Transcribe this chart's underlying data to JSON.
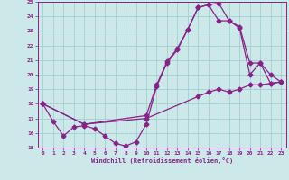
{
  "xlabel": "Windchill (Refroidissement éolien,°C)",
  "xlim": [
    -0.5,
    23.5
  ],
  "ylim": [
    15,
    25
  ],
  "xticks": [
    0,
    1,
    2,
    3,
    4,
    5,
    6,
    7,
    8,
    9,
    10,
    11,
    12,
    13,
    14,
    15,
    16,
    17,
    18,
    19,
    20,
    21,
    22,
    23
  ],
  "yticks": [
    15,
    16,
    17,
    18,
    19,
    20,
    21,
    22,
    23,
    24,
    25
  ],
  "bg_color": "#cce8e8",
  "line_color": "#882288",
  "grid_color": "#99cccc",
  "line1_x": [
    0,
    1,
    2,
    3,
    4,
    5,
    6,
    7,
    8,
    9,
    10,
    11,
    12,
    13,
    14,
    15,
    16,
    17,
    18,
    19,
    20,
    21,
    22,
    23
  ],
  "line1_y": [
    18.0,
    16.8,
    15.8,
    16.4,
    16.5,
    16.3,
    15.8,
    15.3,
    15.1,
    15.4,
    16.6,
    19.2,
    20.8,
    21.7,
    23.1,
    24.6,
    24.8,
    24.9,
    23.7,
    23.2,
    20.0,
    20.8,
    19.4,
    19.5
  ],
  "line2_x": [
    0,
    4,
    10,
    15,
    16,
    17,
    18,
    19,
    20,
    21,
    22,
    23
  ],
  "line2_y": [
    18.0,
    16.6,
    17.0,
    18.5,
    18.8,
    19.0,
    18.8,
    19.0,
    19.3,
    19.3,
    19.4,
    19.5
  ],
  "line3_x": [
    0,
    4,
    10,
    11,
    12,
    13,
    14,
    15,
    16,
    17,
    18,
    19,
    20,
    21,
    22,
    23
  ],
  "line3_y": [
    18.0,
    16.6,
    17.2,
    19.3,
    20.9,
    21.8,
    23.1,
    24.6,
    24.8,
    23.7,
    23.7,
    23.3,
    20.8,
    20.8,
    20.0,
    19.5
  ],
  "marker_size": 2.5,
  "linewidth": 0.9
}
